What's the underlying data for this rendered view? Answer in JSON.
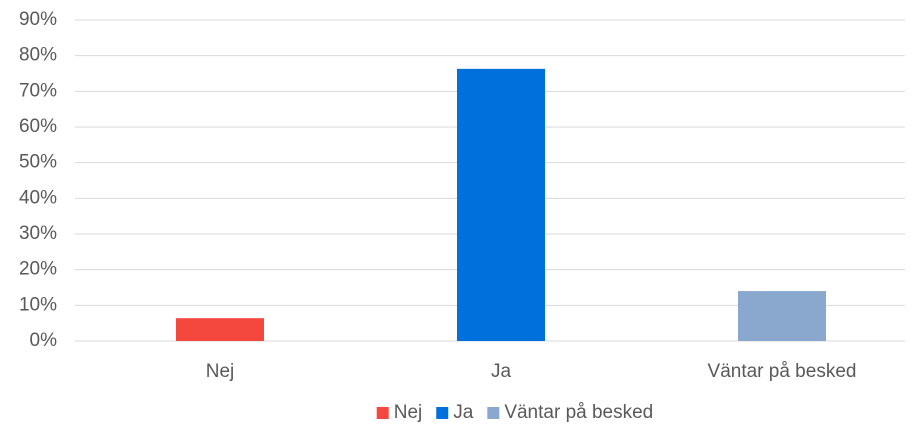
{
  "chart_data": {
    "type": "bar",
    "categories": [
      "Nej",
      "Ja",
      "Väntar på besked"
    ],
    "values": [
      6.4,
      76.3,
      14.0
    ],
    "colors": [
      "#f4483f",
      "#0070dc",
      "#8aa8cd"
    ],
    "ylim": [
      0,
      90
    ],
    "yticks": [
      {
        "value": 0,
        "label": "0%"
      },
      {
        "value": 10,
        "label": "10%"
      },
      {
        "value": 20,
        "label": "20%"
      },
      {
        "value": 30,
        "label": "30%"
      },
      {
        "value": 40,
        "label": "40%"
      },
      {
        "value": 50,
        "label": "50%"
      },
      {
        "value": 60,
        "label": "60%"
      },
      {
        "value": 70,
        "label": "70%"
      },
      {
        "value": 80,
        "label": "80%"
      },
      {
        "value": 90,
        "label": "90%"
      }
    ],
    "grid": true,
    "legend": "bottom"
  }
}
